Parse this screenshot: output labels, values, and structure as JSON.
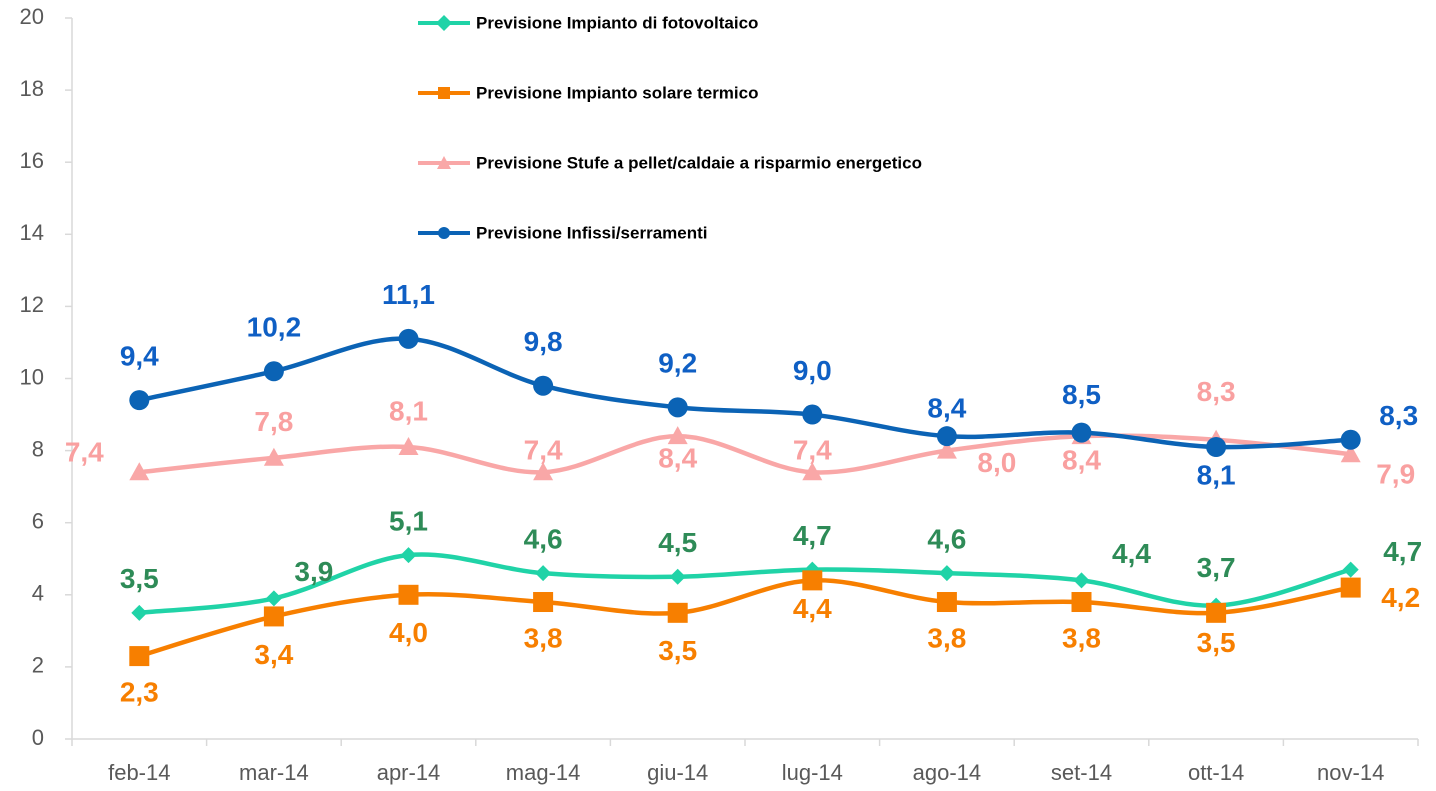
{
  "chart_data": {
    "type": "line",
    "categories": [
      "feb-14",
      "mar-14",
      "apr-14",
      "mag-14",
      "giu-14",
      "lug-14",
      "ago-14",
      "set-14",
      "ott-14",
      "nov-14"
    ],
    "series": [
      {
        "name": "Previsione Impianto di fotovoltaico",
        "color": "#20d3a7",
        "label_color": "#2e8b57",
        "marker": "diamond",
        "values": [
          3.5,
          3.9,
          5.1,
          4.6,
          4.5,
          4.7,
          4.6,
          4.4,
          3.7,
          4.7
        ],
        "value_labels": [
          "3,5",
          "3,9",
          "5,1",
          "4,6",
          "4,5",
          "4,7",
          "4,6",
          "4,4",
          "3,7",
          "4,7"
        ]
      },
      {
        "name": "Previsione Impianto solare termico",
        "color": "#f77f00",
        "label_color": "#f77f00",
        "marker": "square",
        "values": [
          2.3,
          3.4,
          4.0,
          3.8,
          3.5,
          4.4,
          3.8,
          3.8,
          3.5,
          4.2
        ],
        "value_labels": [
          "2,3",
          "3,4",
          "4,0",
          "3,8",
          "3,5",
          "4,4",
          "3,8",
          "3,8",
          "3,5",
          "4,2"
        ]
      },
      {
        "name": "Previsione Stufe a pellet/caldaie a risparmio energetico",
        "color": "#f9a7a7",
        "label_color": "#f9a0a0",
        "marker": "triangle",
        "values": [
          7.4,
          7.8,
          8.1,
          7.4,
          8.4,
          7.4,
          8.0,
          8.4,
          8.3,
          7.9
        ],
        "value_labels": [
          "7,4",
          "7,8",
          "8,1",
          "7,4",
          "8,4",
          "7,4",
          "8,0",
          "8,4",
          "8,3",
          "7,9"
        ]
      },
      {
        "name": "Previsione Infissi/serramenti",
        "color": "#0b63b5",
        "label_color": "#0f5fc4",
        "marker": "circle",
        "values": [
          9.4,
          10.2,
          11.1,
          9.8,
          9.2,
          9.0,
          8.4,
          8.5,
          8.1,
          8.3
        ],
        "value_labels": [
          "9,4",
          "10,2",
          "11,1",
          "9,8",
          "9,2",
          "9,0",
          "8,4",
          "8,5",
          "8,1",
          "8,3"
        ]
      }
    ],
    "ylim": [
      0,
      20
    ],
    "yticks": [
      0,
      2,
      4,
      6,
      8,
      10,
      12,
      14,
      16,
      18,
      20
    ]
  }
}
